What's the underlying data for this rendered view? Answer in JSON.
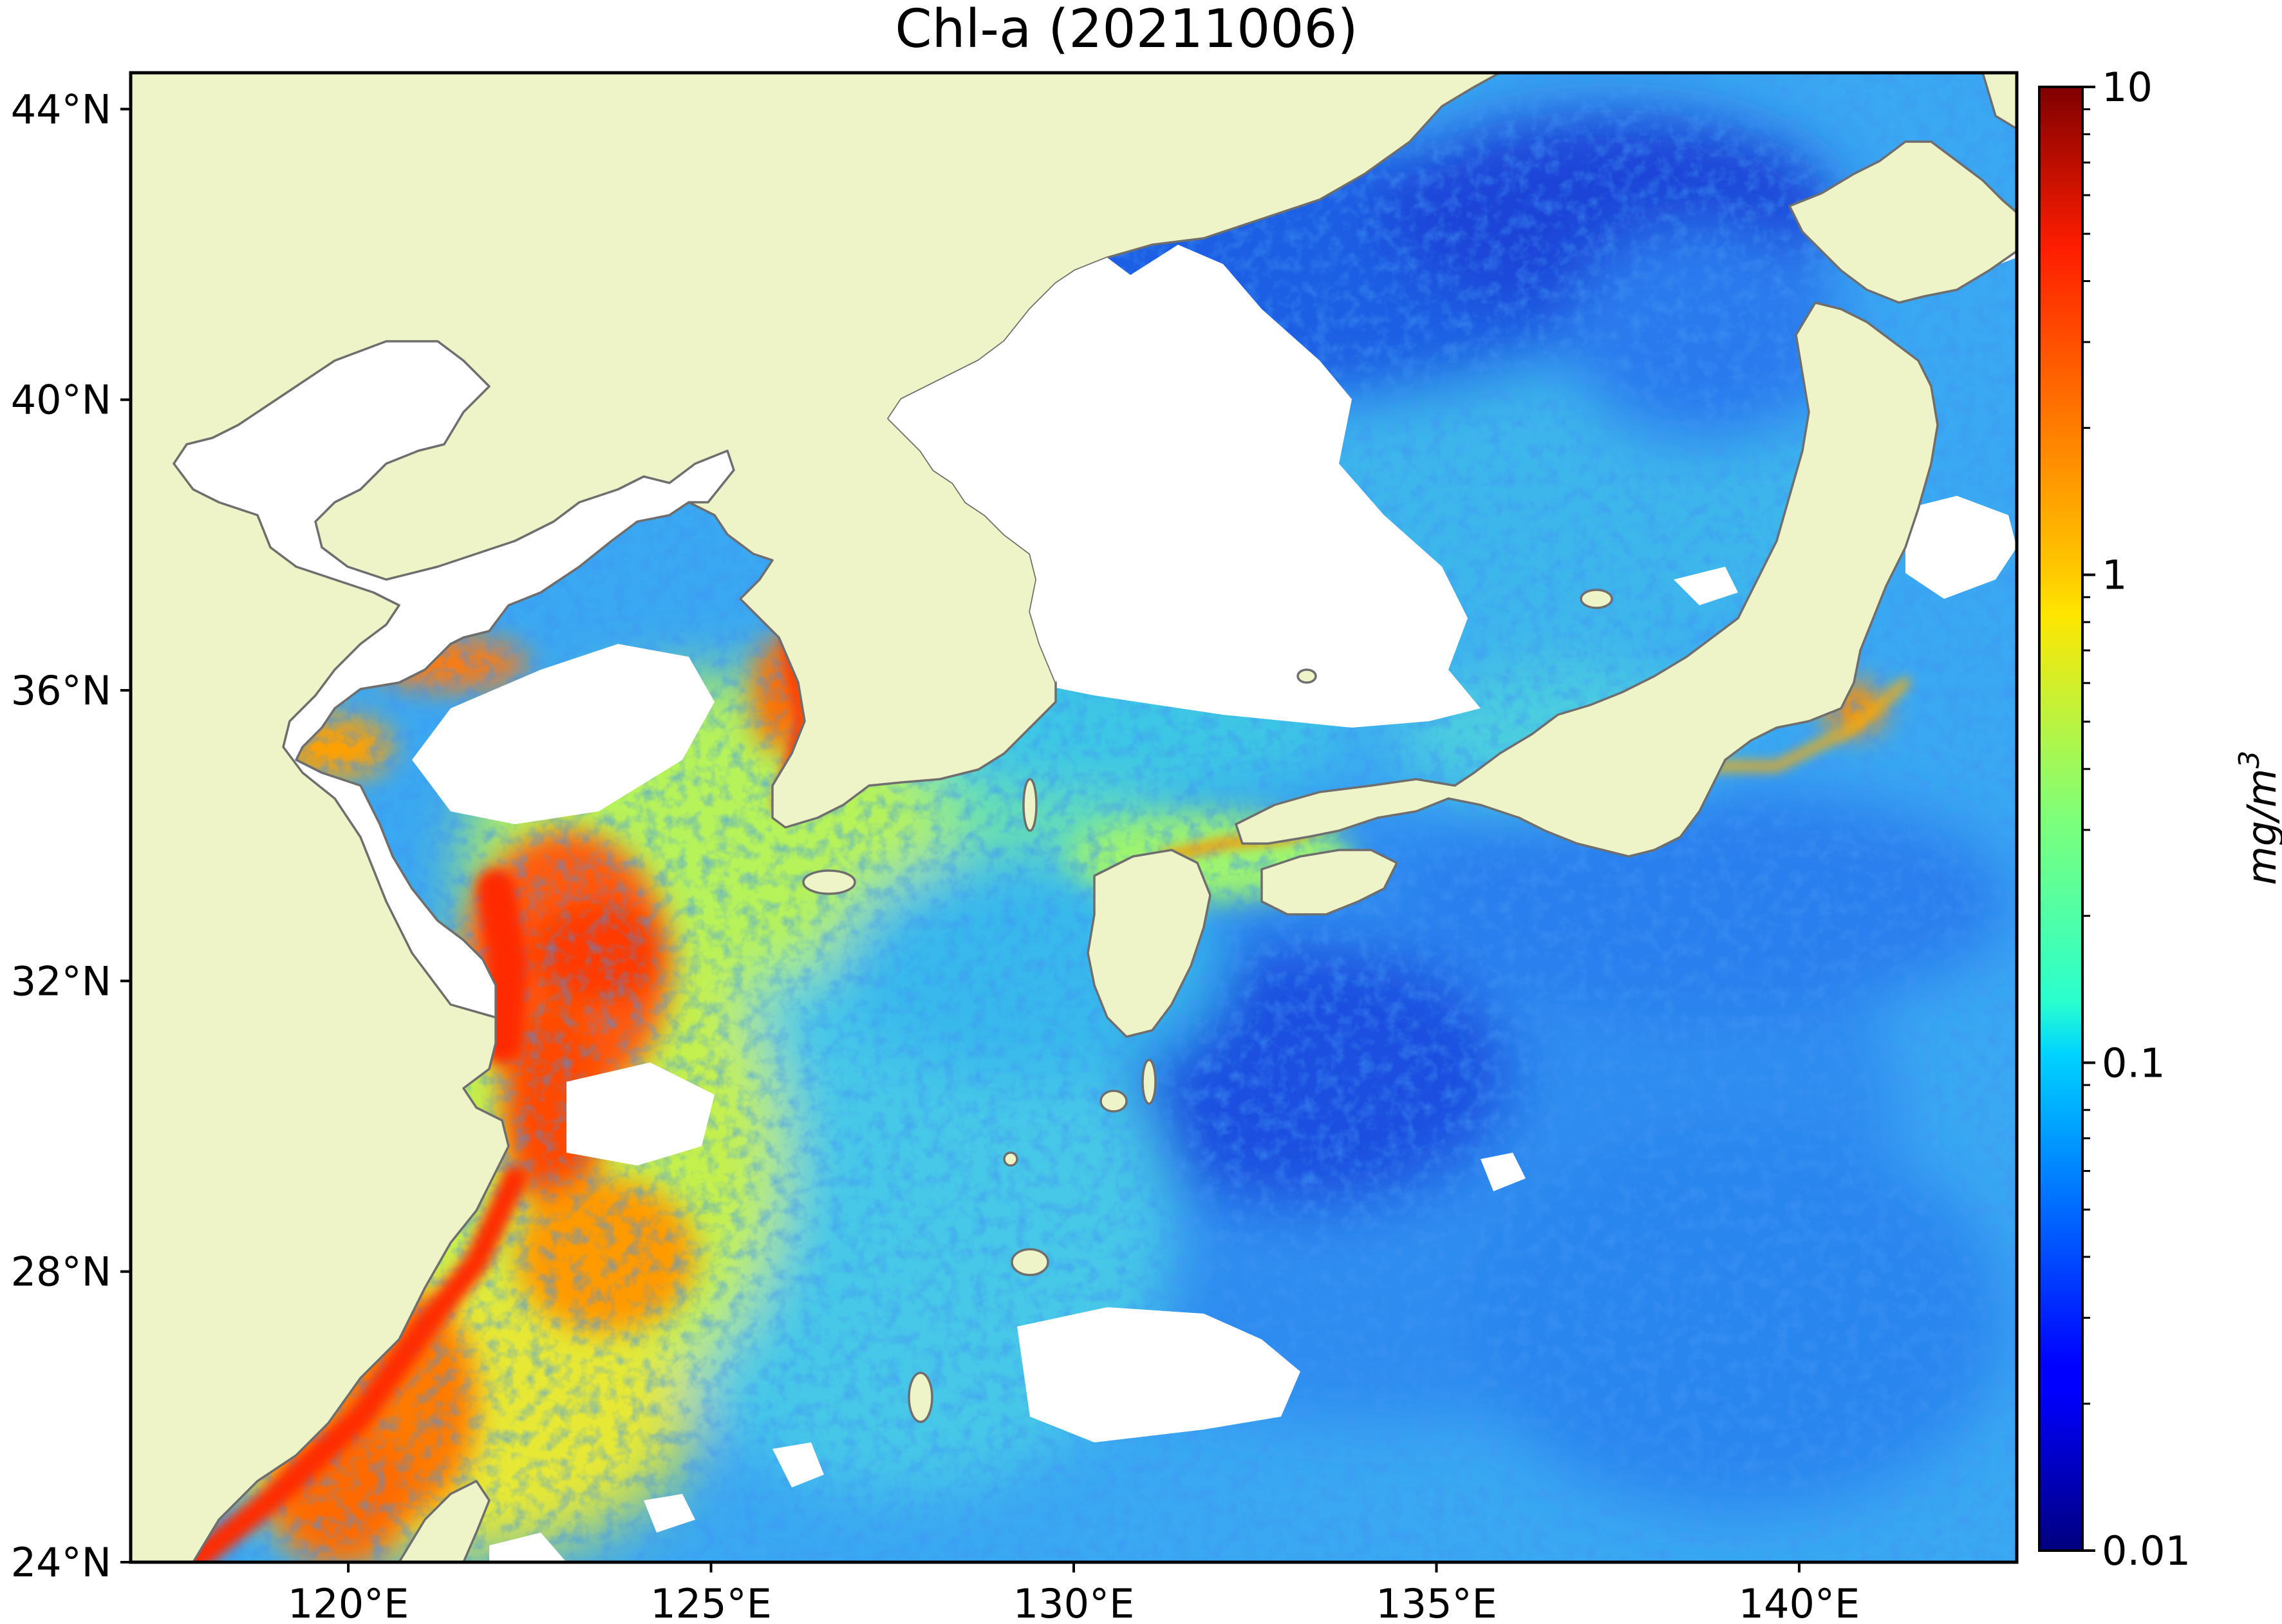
{
  "title": "Chl-a (20211006)",
  "colors": {
    "land": "#eff3c8",
    "coast": "#6e6e6e",
    "no_data": "#ffffff",
    "colormap": "jet"
  },
  "map": {
    "projection": "PlateCarree",
    "lon_range": [
      117,
      143
    ],
    "lat_range": [
      24,
      44.5
    ],
    "lon_ticks": [
      {
        "value": 120,
        "label": "120°E"
      },
      {
        "value": 125,
        "label": "125°E"
      },
      {
        "value": 130,
        "label": "130°E"
      },
      {
        "value": 135,
        "label": "135°E"
      },
      {
        "value": 140,
        "label": "140°E"
      }
    ],
    "lat_ticks": [
      {
        "value": 44,
        "label": "44°N"
      },
      {
        "value": 40,
        "label": "40°N"
      },
      {
        "value": 36,
        "label": "36°N"
      },
      {
        "value": 32,
        "label": "32°N"
      },
      {
        "value": 28,
        "label": "28°N"
      },
      {
        "value": 24,
        "label": "24°N"
      }
    ]
  },
  "colorbar": {
    "scale": "log",
    "range": [
      0.01,
      10
    ],
    "ticks": [
      {
        "value": 10,
        "label": "10"
      },
      {
        "value": 1,
        "label": "1"
      },
      {
        "value": 0.1,
        "label": "0.1"
      },
      {
        "value": 0.01,
        "label": "0.01"
      }
    ],
    "units": "mg/m",
    "units_sup": "3"
  }
}
